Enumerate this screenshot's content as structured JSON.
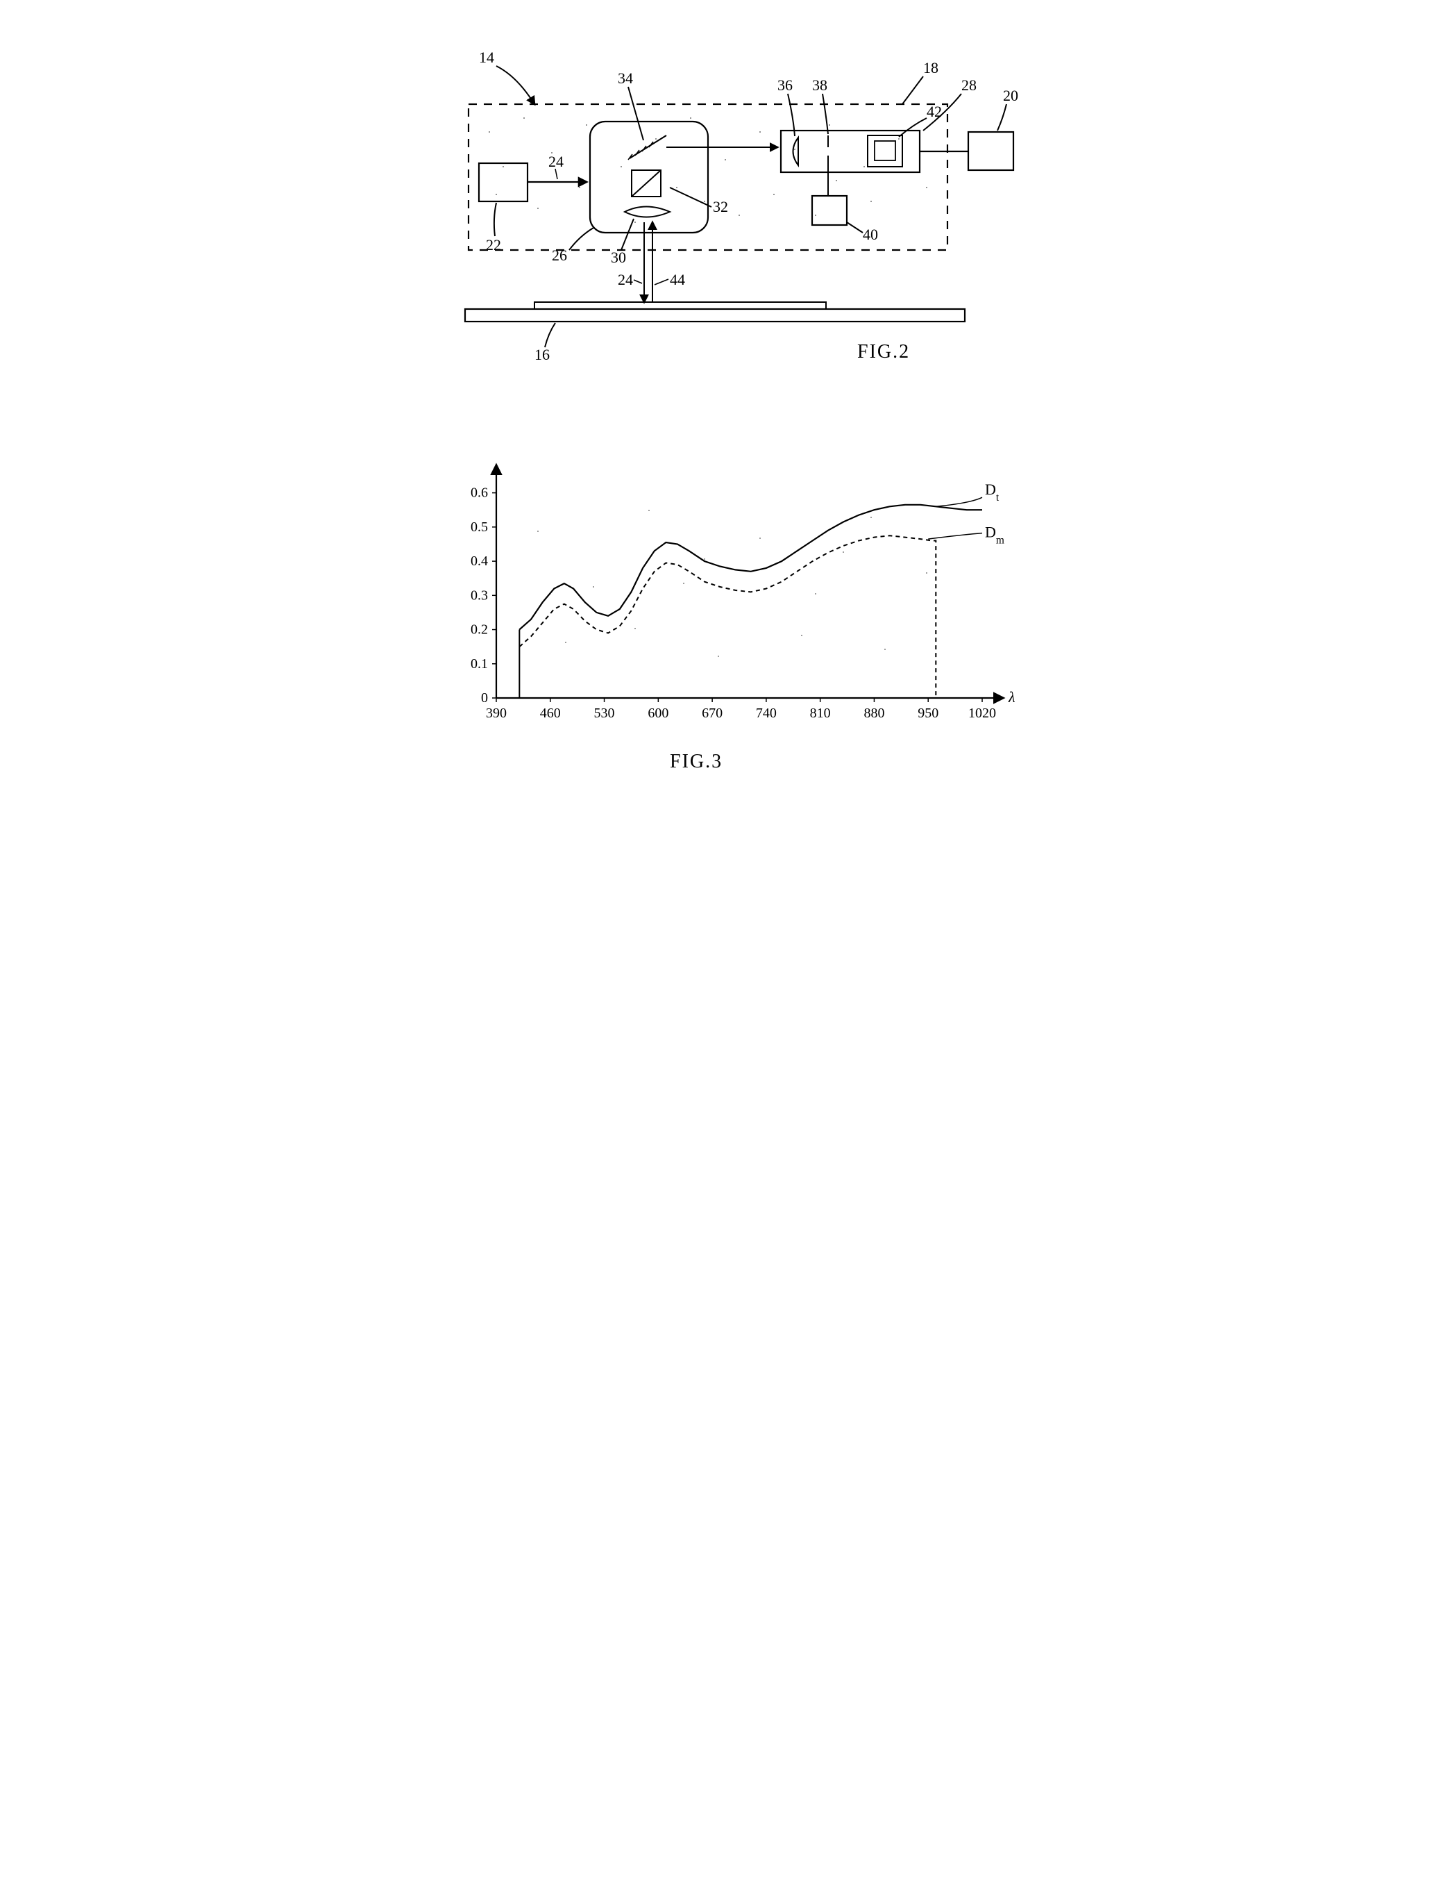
{
  "fig2": {
    "label": "FIG.2",
    "callouts": {
      "main": "14",
      "dashedBox": "18",
      "rightBox": "20",
      "leftBox": "22",
      "arrowLeft": "24",
      "roundedBox": "26",
      "detectorBox": "28",
      "lens": "30",
      "beamSplitter": "32",
      "mirror": "34",
      "halfLens": "36",
      "slit": "38",
      "bottomDetBox": "40",
      "innerDet": "42",
      "beamDown": "24",
      "beamUp": "44",
      "substrate": "16"
    },
    "stroke": "#000000",
    "strokeWidth": 2.2,
    "bg": "#ffffff"
  },
  "fig3": {
    "label": "FIG.3",
    "type": "line",
    "xlabel": "λ",
    "xlim": [
      390,
      1020
    ],
    "xticks": [
      390,
      460,
      530,
      600,
      670,
      740,
      810,
      880,
      950,
      1020
    ],
    "ylim": [
      0,
      0.65
    ],
    "yticks": [
      0,
      0.1,
      0.2,
      0.3,
      0.4,
      0.5,
      0.6
    ],
    "yticklabels": [
      "0",
      "0.1",
      "0.2",
      "0.3",
      "0.4",
      "0.5",
      "0.6"
    ],
    "series": [
      {
        "name": "Dt",
        "label": "D",
        "sub": "t",
        "dash": "none",
        "color": "#000000",
        "width": 2.2,
        "points": [
          [
            420,
            0.2
          ],
          [
            435,
            0.23
          ],
          [
            450,
            0.28
          ],
          [
            465,
            0.32
          ],
          [
            478,
            0.335
          ],
          [
            490,
            0.32
          ],
          [
            505,
            0.28
          ],
          [
            520,
            0.25
          ],
          [
            535,
            0.24
          ],
          [
            550,
            0.26
          ],
          [
            565,
            0.31
          ],
          [
            580,
            0.38
          ],
          [
            595,
            0.43
          ],
          [
            610,
            0.455
          ],
          [
            625,
            0.45
          ],
          [
            640,
            0.43
          ],
          [
            660,
            0.4
          ],
          [
            680,
            0.385
          ],
          [
            700,
            0.375
          ],
          [
            720,
            0.37
          ],
          [
            740,
            0.38
          ],
          [
            760,
            0.4
          ],
          [
            780,
            0.43
          ],
          [
            800,
            0.46
          ],
          [
            820,
            0.49
          ],
          [
            840,
            0.515
          ],
          [
            860,
            0.535
          ],
          [
            880,
            0.55
          ],
          [
            900,
            0.56
          ],
          [
            920,
            0.565
          ],
          [
            940,
            0.565
          ],
          [
            960,
            0.56
          ],
          [
            980,
            0.555
          ],
          [
            1000,
            0.55
          ],
          [
            1020,
            0.55
          ]
        ]
      },
      {
        "name": "Dm",
        "label": "D",
        "sub": "m",
        "dash": "6,5",
        "color": "#000000",
        "width": 2.0,
        "points": [
          [
            420,
            0.15
          ],
          [
            435,
            0.18
          ],
          [
            450,
            0.22
          ],
          [
            465,
            0.26
          ],
          [
            478,
            0.275
          ],
          [
            490,
            0.26
          ],
          [
            505,
            0.225
          ],
          [
            520,
            0.2
          ],
          [
            535,
            0.19
          ],
          [
            550,
            0.21
          ],
          [
            565,
            0.255
          ],
          [
            580,
            0.32
          ],
          [
            595,
            0.37
          ],
          [
            610,
            0.395
          ],
          [
            625,
            0.39
          ],
          [
            640,
            0.37
          ],
          [
            660,
            0.34
          ],
          [
            680,
            0.325
          ],
          [
            700,
            0.315
          ],
          [
            720,
            0.31
          ],
          [
            740,
            0.32
          ],
          [
            760,
            0.34
          ],
          [
            780,
            0.37
          ],
          [
            800,
            0.4
          ],
          [
            820,
            0.425
          ],
          [
            840,
            0.445
          ],
          [
            860,
            0.46
          ],
          [
            880,
            0.47
          ],
          [
            900,
            0.475
          ],
          [
            920,
            0.47
          ],
          [
            940,
            0.465
          ],
          [
            955,
            0.46
          ],
          [
            960,
            0.46
          ]
        ],
        "dropX": 960
      }
    ],
    "stroke": "#000000",
    "bg": "#ffffff",
    "axis_fontsize": 20,
    "label_fontsize": 22
  }
}
